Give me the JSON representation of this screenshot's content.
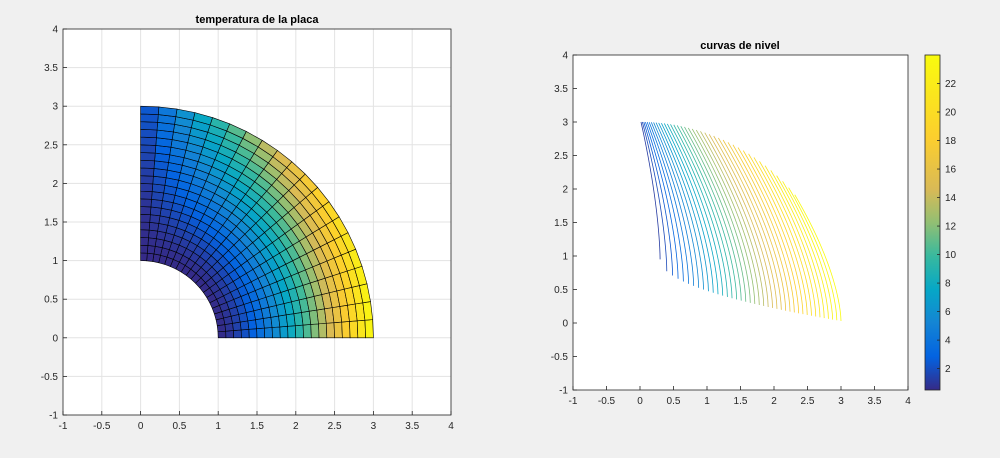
{
  "chart_data": [
    {
      "type": "surface",
      "title": "temperatura de la placa",
      "xlim": [
        -1,
        4
      ],
      "ylim": [
        -1,
        4
      ],
      "xticks": [
        "-1",
        "-0.5",
        "0",
        "0.5",
        "1",
        "1.5",
        "2",
        "2.5",
        "3",
        "3.5",
        "4"
      ],
      "yticks": [
        "-1",
        "-0.5",
        "0",
        "0.5",
        "1",
        "1.5",
        "2",
        "2.5",
        "3",
        "3.5",
        "4"
      ],
      "grid": true,
      "colormap": "parula",
      "domain": {
        "shape": "quarter annulus",
        "r_inner": 1,
        "r_outer": 3,
        "theta_range_deg": [
          0,
          90
        ]
      },
      "mesh": {
        "radial_cells": 20,
        "angular_cells": 20
      },
      "clim": [
        0.5,
        24
      ],
      "temperature_samples": [
        {
          "x": 1,
          "y": 0,
          "value": 6
        },
        {
          "x": 2,
          "y": 0,
          "value": 12
        },
        {
          "x": 3,
          "y": 0,
          "value": 24
        },
        {
          "x": 0,
          "y": 1,
          "value": 0.5
        },
        {
          "x": 0,
          "y": 3,
          "value": 0.5
        },
        {
          "x": 2.12,
          "y": 2.12,
          "value": 22
        }
      ]
    },
    {
      "type": "contour",
      "title": "curvas de nivel",
      "xlim": [
        -1,
        4
      ],
      "ylim": [
        -1,
        4
      ],
      "xticks": [
        "-1",
        "-0.5",
        "0",
        "0.5",
        "1",
        "1.5",
        "2",
        "2.5",
        "3",
        "3.5",
        "4"
      ],
      "yticks": [
        "-1",
        "-0.5",
        "0",
        "0.5",
        "1",
        "1.5",
        "2",
        "2.5",
        "3",
        "3.5",
        "4"
      ],
      "grid": false,
      "colormap": "parula",
      "level_count": 40,
      "level_range": [
        0.5,
        24
      ],
      "contour_span_x": [
        0.3,
        3.0
      ],
      "colorbar": {
        "location": "right",
        "ticks": [
          "2",
          "4",
          "6",
          "8",
          "10",
          "12",
          "14",
          "16",
          "18",
          "20",
          "22"
        ],
        "range": [
          0.5,
          24
        ]
      }
    }
  ]
}
